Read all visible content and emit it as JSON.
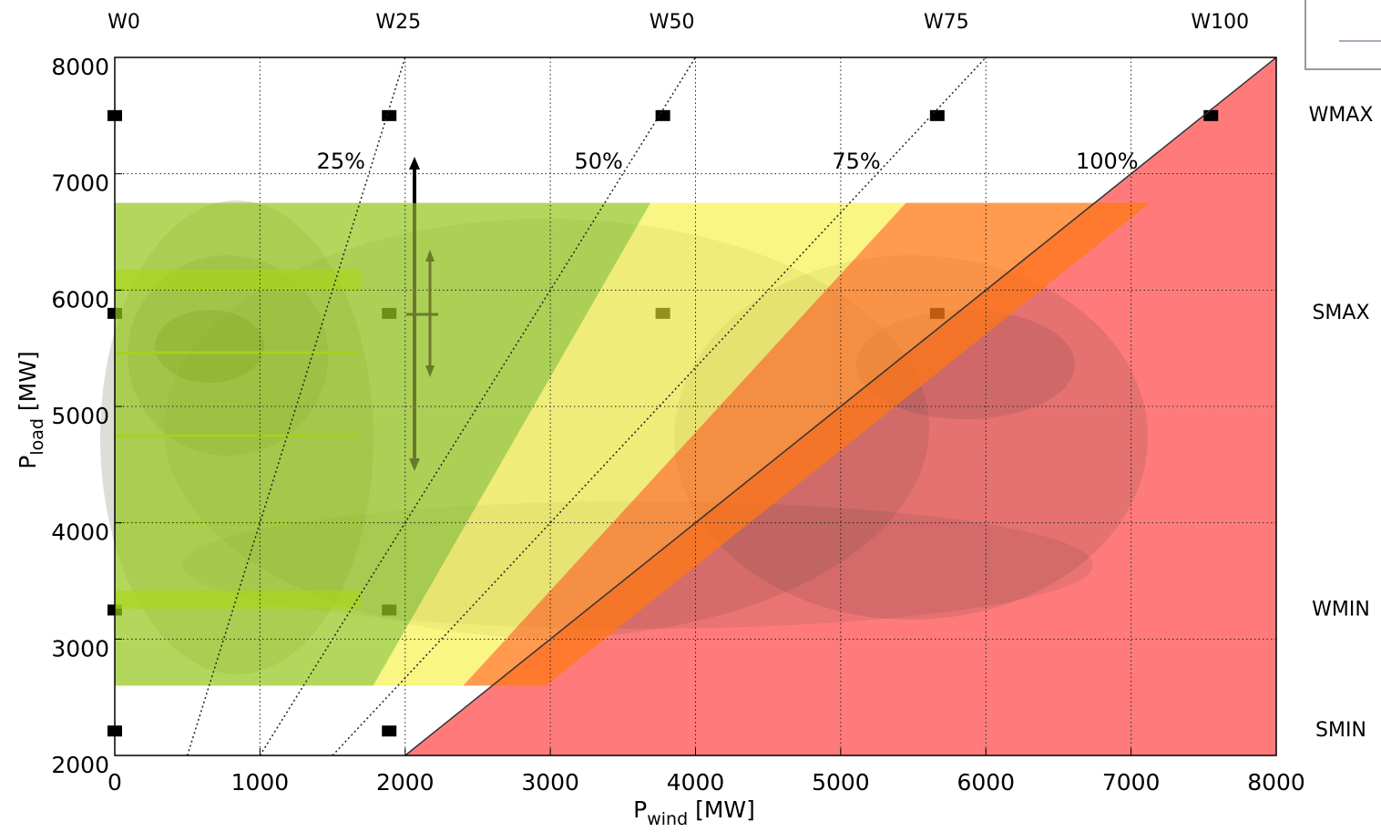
{
  "chart_data": {
    "type": "scatter",
    "xlabel": {
      "symbol": "P",
      "subscript": "wind",
      "unit": " [MW]"
    },
    "ylabel": {
      "symbol": "P",
      "subscript": "load",
      "unit": " [MW]"
    },
    "xlim": [
      0,
      8000
    ],
    "ylim": [
      2000,
      8000
    ],
    "xticks": [
      0,
      1000,
      2000,
      3000,
      4000,
      5000,
      6000,
      7000,
      8000
    ],
    "yticks": [
      2000,
      3000,
      4000,
      5000,
      6000,
      7000,
      8000
    ],
    "grid": true,
    "columns": {
      "labels": [
        "W0",
        "W25",
        "W50",
        "W75",
        "W100"
      ],
      "values": [
        0,
        1890,
        3775,
        5665,
        7550
      ]
    },
    "rows": {
      "labels": [
        "WMAX",
        "SMAX",
        "WMIN",
        "SMIN"
      ],
      "values": [
        7500,
        5800,
        3250,
        2210
      ]
    },
    "ratio_lines": {
      "values": [
        25,
        50,
        75,
        100
      ],
      "value_labels": [
        "25%",
        "50%",
        "75%",
        "100%"
      ],
      "label_y": 7100
    },
    "points": {
      "color": "#000000",
      "x": [
        0,
        1890,
        3775,
        5665,
        7550,
        0,
        1890,
        3775,
        5665,
        0,
        1890,
        0,
        1890
      ],
      "y": [
        7500,
        7500,
        7500,
        7500,
        7500,
        5800,
        5800,
        5800,
        5800,
        3250,
        3250,
        2210,
        2210
      ]
    },
    "regions": [
      {
        "color": "#ff7b7b",
        "x": [
          2000,
          8000,
          8000
        ],
        "y": [
          2000,
          8000,
          2000
        ]
      },
      {
        "color": "rgba(150,200,30,0.72)",
        "x": [
          0,
          1780,
          3690,
          0
        ],
        "y": [
          2600,
          2600,
          6750,
          6750
        ]
      },
      {
        "color": "rgba(245,240,50,0.6)",
        "x": [
          1780,
          2400,
          5450,
          3690
        ],
        "y": [
          2600,
          2600,
          6750,
          6750
        ]
      },
      {
        "color": "rgba(255,120,20,0.75)",
        "x": [
          2400,
          2970,
          7130,
          5450
        ],
        "y": [
          2600,
          2600,
          6750,
          6750
        ]
      }
    ]
  }
}
